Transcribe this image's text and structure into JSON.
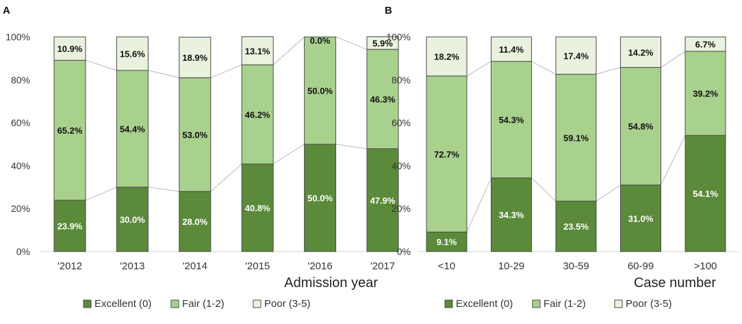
{
  "colors": {
    "excellent": "#5a8a3a",
    "fair": "#a9d18e",
    "poor": "#e8f2de",
    "border": "#4a4a4a",
    "connector": "#b8b8b8"
  },
  "chart_data": [
    {
      "type": "bar",
      "stacked": true,
      "panel": "A",
      "xlabel": "Admission year",
      "ylabel": "",
      "ylim": [
        0,
        100
      ],
      "yticks": [
        "0%",
        "20%",
        "40%",
        "60%",
        "80%",
        "100%"
      ],
      "categories": [
        "'2012",
        "'2013",
        "'2014",
        "'2015",
        "'2016",
        "'2017"
      ],
      "series": [
        {
          "name": "Excellent (0)",
          "key": "excellent",
          "values": [
            23.9,
            30.0,
            28.0,
            40.8,
            50.0,
            47.9
          ],
          "labels": [
            "23.9%",
            "30.0%",
            "28.0%",
            "40.8%",
            "50.0%",
            "47.9%"
          ]
        },
        {
          "name": "Fair (1-2)",
          "key": "fair",
          "values": [
            65.2,
            54.4,
            53.0,
            46.2,
            50.0,
            46.3
          ],
          "labels": [
            "65.2%",
            "54.4%",
            "53.0%",
            "46.2%",
            "50.0%",
            "46.3%"
          ]
        },
        {
          "name": "Poor (3-5)",
          "key": "poor",
          "values": [
            10.9,
            15.6,
            18.9,
            13.1,
            0.0,
            5.9
          ],
          "labels": [
            "10.9%",
            "15.6%",
            "18.9%",
            "13.1%",
            "0.0%",
            "5.9%"
          ]
        }
      ]
    },
    {
      "type": "bar",
      "stacked": true,
      "panel": "B",
      "xlabel": "Case number",
      "ylabel": "",
      "ylim": [
        0,
        100
      ],
      "yticks": [
        "0%",
        "20%",
        "40%",
        "60%",
        "80%",
        "100%"
      ],
      "categories": [
        "<10",
        "10-29",
        "30-59",
        "60-99",
        ">100"
      ],
      "series": [
        {
          "name": "Excellent (0)",
          "key": "excellent",
          "values": [
            9.1,
            34.3,
            23.5,
            31.0,
            54.1
          ],
          "labels": [
            "9.1%",
            "34.3%",
            "23.5%",
            "31.0%",
            "54.1%"
          ]
        },
        {
          "name": "Fair (1-2)",
          "key": "fair",
          "values": [
            72.7,
            54.3,
            59.1,
            54.8,
            39.2
          ],
          "labels": [
            "72.7%",
            "54.3%",
            "59.1%",
            "54.8%",
            "39.2%"
          ]
        },
        {
          "name": "Poor (3-5)",
          "key": "poor",
          "values": [
            18.2,
            11.4,
            17.4,
            14.2,
            6.7
          ],
          "labels": [
            "18.2%",
            "11.4%",
            "17.4%",
            "14.2%",
            "6.7%"
          ]
        }
      ]
    }
  ]
}
